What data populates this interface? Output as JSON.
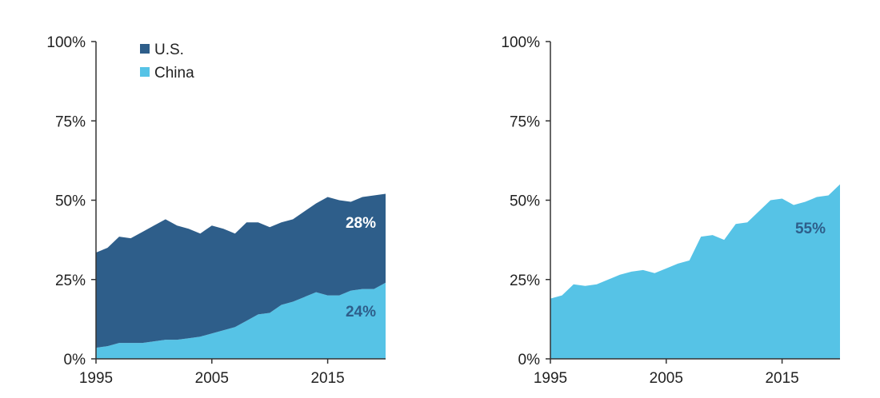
{
  "chart_data": [
    {
      "type": "area",
      "stacked": true,
      "x": [
        1995,
        1996,
        1997,
        1998,
        1999,
        2000,
        2001,
        2002,
        2003,
        2004,
        2005,
        2006,
        2007,
        2008,
        2009,
        2010,
        2011,
        2012,
        2013,
        2014,
        2015,
        2016,
        2017,
        2018,
        2019,
        2020
      ],
      "series": [
        {
          "name": "China",
          "color": "#56C3E6",
          "values": [
            3.5,
            4,
            5,
            5,
            5,
            5.5,
            6,
            6,
            6.5,
            7,
            8,
            9,
            10,
            12,
            14,
            14.5,
            17,
            18,
            19.5,
            21,
            20,
            20,
            21.5,
            22,
            22,
            24
          ]
        },
        {
          "name": "U.S.",
          "color": "#2E5E8A",
          "values": [
            30,
            31,
            33.5,
            33,
            35,
            36.5,
            38,
            36,
            34.5,
            32.5,
            34,
            32,
            29.5,
            31,
            29,
            27,
            26,
            26,
            27,
            28,
            31,
            30,
            28,
            29,
            29.5,
            28
          ]
        }
      ],
      "ylim": [
        0,
        100
      ],
      "yticks": [
        "0%",
        "25%",
        "50%",
        "75%",
        "100%"
      ],
      "xticks": [
        "1995",
        "2005",
        "2015"
      ],
      "legend": "top-left",
      "annotations": [
        {
          "text": "28%",
          "series": "U.S.",
          "color": "#ffffff"
        },
        {
          "text": "24%",
          "series": "China",
          "color": "#2E5E8A"
        }
      ],
      "grid": false
    },
    {
      "type": "area",
      "stacked": false,
      "x": [
        1995,
        1996,
        1997,
        1998,
        1999,
        2000,
        2001,
        2002,
        2003,
        2004,
        2005,
        2006,
        2007,
        2008,
        2009,
        2010,
        2011,
        2012,
        2013,
        2014,
        2015,
        2016,
        2017,
        2018,
        2019,
        2020
      ],
      "series": [
        {
          "color": "#56C3E6",
          "values": [
            19,
            20,
            23.5,
            23,
            23.5,
            25,
            26.5,
            27.5,
            28,
            27,
            28.5,
            30,
            31,
            38.5,
            39,
            37.5,
            42.5,
            43,
            46.5,
            50,
            50.5,
            48.5,
            49.5,
            51,
            51.5,
            55
          ]
        }
      ],
      "ylim": [
        0,
        100
      ],
      "yticks": [
        "0%",
        "25%",
        "50%",
        "75%",
        "100%"
      ],
      "xticks": [
        "1995",
        "2005",
        "2015"
      ],
      "annotations": [
        {
          "text": "55%",
          "color": "#2E5E8A"
        }
      ],
      "grid": false
    }
  ]
}
